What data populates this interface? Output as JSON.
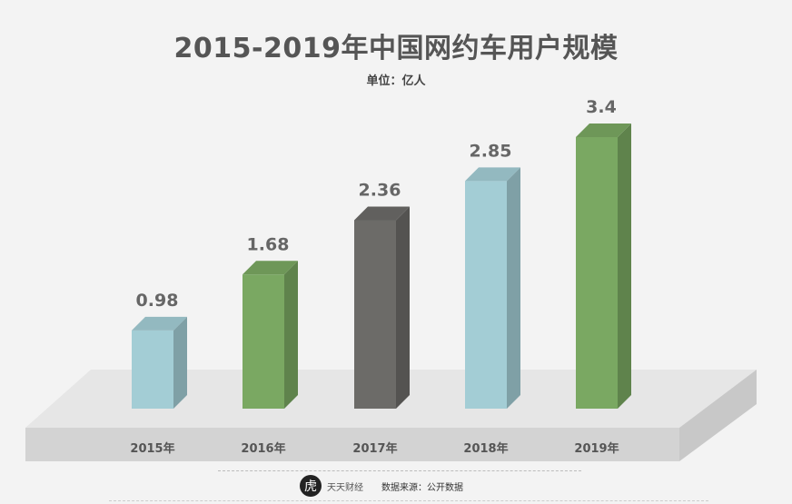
{
  "title": "2015-2019年中国网约车用户规模",
  "unit_label": "单位：亿人",
  "footer": {
    "logo_glyph": "虎",
    "brand": "天天财经",
    "source": "数据来源：公开数据"
  },
  "chart_data": {
    "type": "bar",
    "title": "2015-2019年中国网约车用户规模",
    "unit": "亿人",
    "categories": [
      "2015年",
      "2016年",
      "2017年",
      "2018年",
      "2019年"
    ],
    "values": [
      0.98,
      1.68,
      2.36,
      2.85,
      3.4
    ],
    "value_labels": [
      "0.98",
      "1.68",
      "2.36",
      "2.85",
      "3.4"
    ],
    "ylim": [
      0,
      3.4
    ],
    "grid": false,
    "style": "3d",
    "colors": [
      "#a3cdd5",
      "#7aa862",
      "#6c6b68",
      "#a3cdd5",
      "#7aa862"
    ],
    "value_label_color": "#666666"
  }
}
